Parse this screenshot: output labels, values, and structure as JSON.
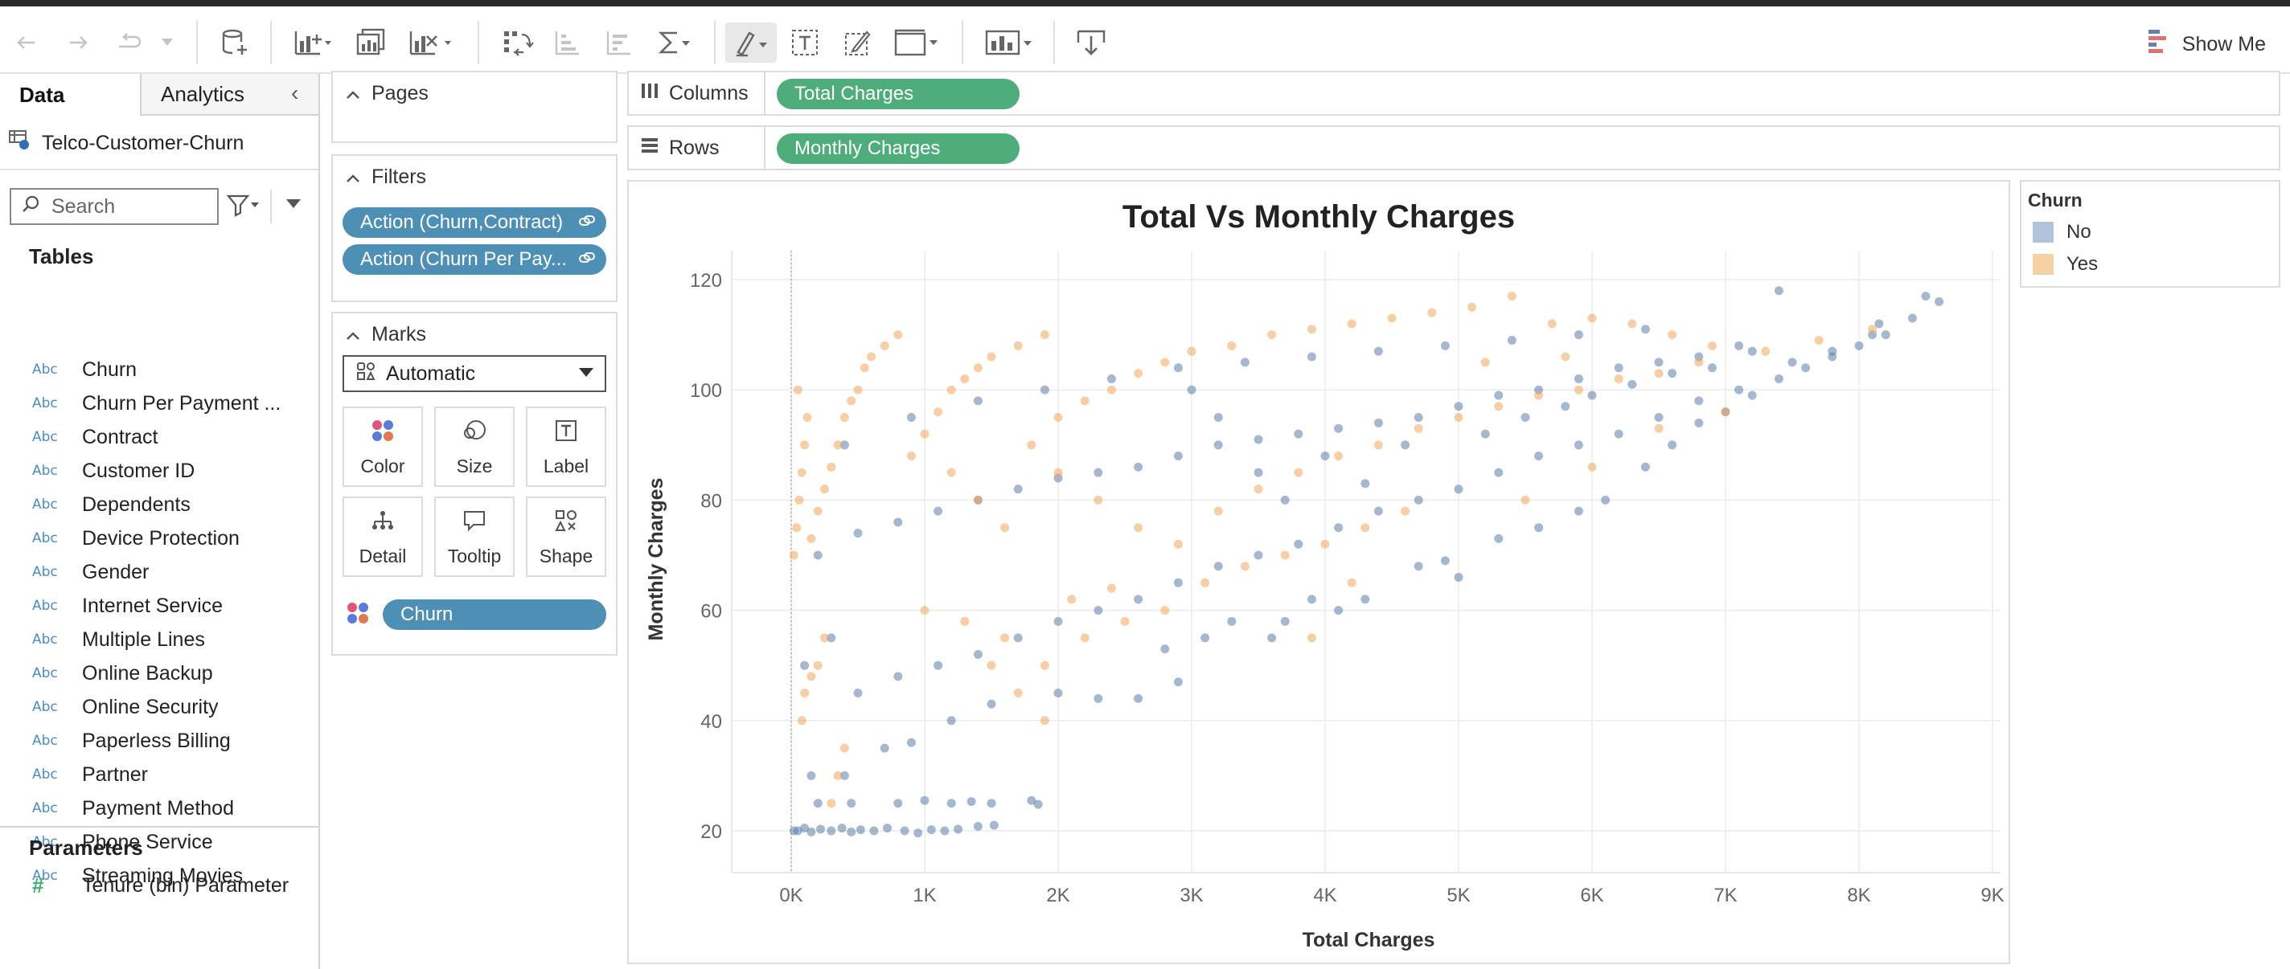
{
  "toolbar": {
    "show_me_label": "Show Me"
  },
  "data_pane": {
    "tabs": {
      "data": "Data",
      "analytics": "Analytics"
    },
    "datasource": "Telco-Customer-Churn",
    "search_placeholder": "Search",
    "tables_title": "Tables",
    "type_label": "Abc",
    "fields": [
      "Churn",
      "Churn Per Payment ...",
      "Contract",
      "Customer ID",
      "Dependents",
      "Device Protection",
      "Gender",
      "Internet Service",
      "Multiple Lines",
      "Online Backup",
      "Online Security",
      "Paperless Billing",
      "Partner",
      "Payment Method",
      "Phone Service",
      "Streaming Movies"
    ],
    "parameters_title": "Parameters",
    "parameters": [
      "Tenure (bin) Parameter"
    ]
  },
  "pages_card": {
    "title": "Pages"
  },
  "filters_card": {
    "title": "Filters",
    "pills": [
      "Action (Churn,Contract)",
      "Action (Churn Per Pay..."
    ]
  },
  "marks_card": {
    "title": "Marks",
    "mark_type": "Automatic",
    "buttons": [
      "Color",
      "Size",
      "Label",
      "Detail",
      "Tooltip",
      "Shape"
    ],
    "color_field": "Churn"
  },
  "shelves": {
    "columns_label": "Columns",
    "columns_pill": "Total Charges",
    "rows_label": "Rows",
    "rows_pill": "Monthly Charges"
  },
  "legend": {
    "title": "Churn",
    "items": [
      {
        "label": "No",
        "color": "#b3c2dc"
      },
      {
        "label": "Yes",
        "color": "#f5d2a6"
      }
    ]
  },
  "colors": {
    "accent_blue": "#4e8fb5",
    "accent_green": "#4fad7b",
    "point_no": "#5b7ea8",
    "point_yes": "#f0a55c"
  },
  "chart_data": {
    "type": "scatter",
    "title": "Total Vs Monthly Charges",
    "xlabel": "Total Charges",
    "ylabel": "Monthly Charges",
    "xlim": [
      0,
      9000
    ],
    "ylim": [
      15,
      125
    ],
    "x_ticks": [
      "0K",
      "1K",
      "2K",
      "3K",
      "4K",
      "5K",
      "6K",
      "7K",
      "8K",
      "9K"
    ],
    "y_ticks": [
      "20",
      "40",
      "60",
      "80",
      "100",
      "120"
    ],
    "grid": true,
    "legend_position": "right",
    "series": [
      {
        "name": "No",
        "points": [
          [
            20,
            20
          ],
          [
            50,
            20
          ],
          [
            100,
            20.5
          ],
          [
            150,
            19.8
          ],
          [
            220,
            20.3
          ],
          [
            300,
            20
          ],
          [
            380,
            20.5
          ],
          [
            450,
            19.8
          ],
          [
            520,
            20.2
          ],
          [
            620,
            20
          ],
          [
            720,
            20.5
          ],
          [
            850,
            20
          ],
          [
            950,
            19.6
          ],
          [
            1050,
            20.2
          ],
          [
            1150,
            20
          ],
          [
            1250,
            20.3
          ],
          [
            1400,
            20.8
          ],
          [
            1520,
            21
          ],
          [
            200,
            25
          ],
          [
            450,
            25
          ],
          [
            800,
            25
          ],
          [
            1000,
            25.5
          ],
          [
            1200,
            25
          ],
          [
            1350,
            25.3
          ],
          [
            1500,
            25
          ],
          [
            1800,
            25.5
          ],
          [
            1850,
            24.8
          ],
          [
            150,
            30
          ],
          [
            400,
            30
          ],
          [
            700,
            35
          ],
          [
            900,
            36
          ],
          [
            1200,
            40
          ],
          [
            1500,
            43
          ],
          [
            2000,
            45
          ],
          [
            2300,
            44
          ],
          [
            2600,
            44
          ],
          [
            2900,
            47
          ],
          [
            2800,
            53
          ],
          [
            3100,
            55
          ],
          [
            3300,
            58
          ],
          [
            3600,
            55
          ],
          [
            3700,
            58
          ],
          [
            3900,
            62
          ],
          [
            4100,
            60
          ],
          [
            4300,
            62
          ],
          [
            4700,
            68
          ],
          [
            5000,
            66
          ],
          [
            4900,
            69
          ],
          [
            5300,
            73
          ],
          [
            5600,
            75
          ],
          [
            5900,
            78
          ],
          [
            6100,
            80
          ],
          [
            6400,
            86
          ],
          [
            6600,
            90
          ],
          [
            6800,
            94
          ],
          [
            7000,
            96
          ],
          [
            7200,
            99
          ],
          [
            7400,
            102
          ],
          [
            7600,
            104
          ],
          [
            7800,
            106
          ],
          [
            8000,
            108
          ],
          [
            8200,
            110
          ],
          [
            8400,
            113
          ],
          [
            8600,
            116
          ],
          [
            7400,
            118
          ],
          [
            8150,
            112
          ],
          [
            8500,
            117
          ],
          [
            100,
            50
          ],
          [
            300,
            55
          ],
          [
            500,
            45
          ],
          [
            800,
            48
          ],
          [
            1100,
            50
          ],
          [
            1400,
            52
          ],
          [
            1700,
            55
          ],
          [
            2000,
            58
          ],
          [
            2300,
            60
          ],
          [
            2600,
            62
          ],
          [
            2900,
            65
          ],
          [
            3200,
            68
          ],
          [
            3500,
            70
          ],
          [
            3800,
            72
          ],
          [
            4100,
            75
          ],
          [
            4400,
            78
          ],
          [
            4700,
            80
          ],
          [
            5000,
            82
          ],
          [
            5300,
            85
          ],
          [
            5600,
            88
          ],
          [
            5900,
            90
          ],
          [
            6200,
            92
          ],
          [
            6500,
            95
          ],
          [
            6800,
            98
          ],
          [
            7100,
            100
          ],
          [
            200,
            70
          ],
          [
            500,
            74
          ],
          [
            800,
            76
          ],
          [
            1100,
            78
          ],
          [
            1400,
            80
          ],
          [
            1700,
            82
          ],
          [
            2000,
            84
          ],
          [
            2300,
            85
          ],
          [
            2600,
            86
          ],
          [
            2900,
            88
          ],
          [
            3200,
            90
          ],
          [
            3500,
            91
          ],
          [
            3800,
            92
          ],
          [
            4100,
            93
          ],
          [
            4400,
            94
          ],
          [
            4700,
            95
          ],
          [
            5000,
            97
          ],
          [
            5300,
            99
          ],
          [
            5600,
            100
          ],
          [
            5900,
            102
          ],
          [
            6200,
            104
          ],
          [
            6500,
            105
          ],
          [
            6800,
            106
          ],
          [
            7100,
            108
          ],
          [
            400,
            90
          ],
          [
            900,
            95
          ],
          [
            1400,
            98
          ],
          [
            1900,
            100
          ],
          [
            2400,
            102
          ],
          [
            2900,
            104
          ],
          [
            3400,
            105
          ],
          [
            3900,
            106
          ],
          [
            4400,
            107
          ],
          [
            4900,
            108
          ],
          [
            5400,
            109
          ],
          [
            5900,
            110
          ],
          [
            6400,
            111
          ],
          [
            3000,
            100
          ],
          [
            3200,
            95
          ],
          [
            3500,
            85
          ],
          [
            3700,
            80
          ],
          [
            4000,
            88
          ],
          [
            4300,
            83
          ],
          [
            4600,
            90
          ],
          [
            5200,
            92
          ],
          [
            5500,
            95
          ],
          [
            5800,
            97
          ],
          [
            6000,
            99
          ],
          [
            6300,
            101
          ],
          [
            6600,
            103
          ],
          [
            6900,
            104
          ],
          [
            7200,
            107
          ],
          [
            7500,
            105
          ],
          [
            7800,
            107
          ],
          [
            8100,
            110
          ]
        ]
      },
      {
        "name": "Yes",
        "points": [
          [
            20,
            70
          ],
          [
            40,
            75
          ],
          [
            60,
            80
          ],
          [
            80,
            85
          ],
          [
            100,
            90
          ],
          [
            120,
            95
          ],
          [
            50,
            100
          ],
          [
            150,
            73
          ],
          [
            200,
            78
          ],
          [
            250,
            82
          ],
          [
            300,
            86
          ],
          [
            350,
            90
          ],
          [
            400,
            95
          ],
          [
            450,
            98
          ],
          [
            500,
            100
          ],
          [
            550,
            104
          ],
          [
            600,
            106
          ],
          [
            700,
            108
          ],
          [
            800,
            110
          ],
          [
            100,
            45
          ],
          [
            150,
            48
          ],
          [
            200,
            50
          ],
          [
            250,
            55
          ],
          [
            300,
            25
          ],
          [
            350,
            30
          ],
          [
            400,
            35
          ],
          [
            80,
            40
          ],
          [
            900,
            88
          ],
          [
            1000,
            92
          ],
          [
            1100,
            96
          ],
          [
            1200,
            100
          ],
          [
            1300,
            102
          ],
          [
            1400,
            104
          ],
          [
            1500,
            106
          ],
          [
            1700,
            108
          ],
          [
            1900,
            110
          ],
          [
            1200,
            85
          ],
          [
            1400,
            80
          ],
          [
            1600,
            75
          ],
          [
            1800,
            90
          ],
          [
            2000,
            95
          ],
          [
            2200,
            98
          ],
          [
            2400,
            100
          ],
          [
            2600,
            103
          ],
          [
            2800,
            105
          ],
          [
            3000,
            107
          ],
          [
            3300,
            108
          ],
          [
            3600,
            110
          ],
          [
            3900,
            111
          ],
          [
            4200,
            112
          ],
          [
            4500,
            113
          ],
          [
            4800,
            114
          ],
          [
            5100,
            115
          ],
          [
            5400,
            117
          ],
          [
            5700,
            112
          ],
          [
            6000,
            113
          ],
          [
            6300,
            112
          ],
          [
            6600,
            110
          ],
          [
            6900,
            108
          ],
          [
            7300,
            107
          ],
          [
            7700,
            109
          ],
          [
            8100,
            111
          ],
          [
            2000,
            85
          ],
          [
            2300,
            80
          ],
          [
            2600,
            75
          ],
          [
            2900,
            72
          ],
          [
            3200,
            78
          ],
          [
            3500,
            82
          ],
          [
            3800,
            85
          ],
          [
            4100,
            88
          ],
          [
            4400,
            90
          ],
          [
            4700,
            93
          ],
          [
            5000,
            95
          ],
          [
            5300,
            97
          ],
          [
            5600,
            99
          ],
          [
            5900,
            100
          ],
          [
            6200,
            102
          ],
          [
            6500,
            103
          ],
          [
            6800,
            105
          ],
          [
            1000,
            60
          ],
          [
            1300,
            58
          ],
          [
            1600,
            55
          ],
          [
            1900,
            50
          ],
          [
            2200,
            55
          ],
          [
            2500,
            58
          ],
          [
            2800,
            60
          ],
          [
            3100,
            65
          ],
          [
            3400,
            68
          ],
          [
            3700,
            70
          ],
          [
            4000,
            72
          ],
          [
            4300,
            75
          ],
          [
            4600,
            78
          ],
          [
            1900,
            40
          ],
          [
            1700,
            45
          ],
          [
            1500,
            50
          ],
          [
            2100,
            62
          ],
          [
            2400,
            64
          ],
          [
            3900,
            55
          ],
          [
            4200,
            65
          ],
          [
            5500,
            80
          ],
          [
            6000,
            86
          ],
          [
            6500,
            93
          ],
          [
            7000,
            96
          ],
          [
            5200,
            105
          ],
          [
            5800,
            106
          ]
        ]
      }
    ]
  }
}
